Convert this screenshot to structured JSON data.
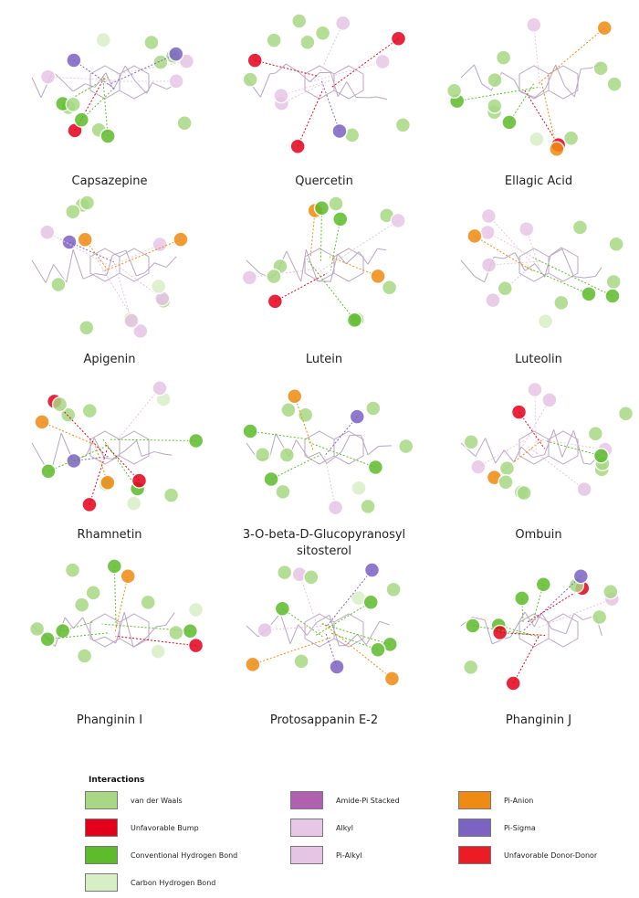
{
  "panels": [
    {
      "label": "Capsazepine"
    },
    {
      "label": "Quercetin"
    },
    {
      "label": "Ellagic Acid"
    },
    {
      "label": "Apigenin"
    },
    {
      "label": "Lutein"
    },
    {
      "label": "Luteolin"
    },
    {
      "label": "Rhamnetin"
    },
    {
      "label": "3-O-beta-D-Glucopyranosyl sitosterol"
    },
    {
      "label": "Ombuin"
    },
    {
      "label": "Phanginin I"
    },
    {
      "label": "Protosappanin E-2"
    },
    {
      "label": "Phanginin J"
    }
  ],
  "legend": {
    "title": "Interactions",
    "items": [
      {
        "label": "van der Waals",
        "color": "#a8d884"
      },
      {
        "label": "Unfavorable Bump",
        "color": "#e3001b"
      },
      {
        "label": "Conventional Hydrogen Bond",
        "color": "#5dbb2c"
      },
      {
        "label": "Carbon Hydrogen Bond",
        "color": "#d8efc6"
      },
      {
        "label": "Amide-Pi Stacked",
        "color": "#b060ae"
      },
      {
        "label": "Alkyl",
        "color": "#e8c6e6"
      },
      {
        "label": "Pi-Alkyl",
        "color": "#e5c4e4"
      },
      {
        "label": "Pi-Anion",
        "color": "#ef8a12"
      },
      {
        "label": "Pi-Sigma",
        "color": "#7c62c2"
      },
      {
        "label": "Unfavorable Donor-Donor",
        "color": "#ec1c24"
      }
    ]
  }
}
